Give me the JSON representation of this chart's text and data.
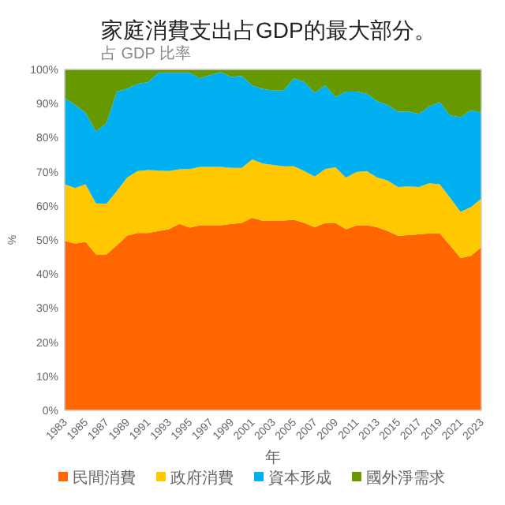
{
  "chart_data": {
    "type": "area",
    "stacked": true,
    "title": "家庭消費支出占GDP的最大部分。",
    "subtitle": "占 GDP 比率",
    "xlabel": "年",
    "ylabel": "%",
    "categories": [
      "1983",
      null,
      "1985",
      null,
      "1987",
      null,
      "1989",
      null,
      "1991",
      null,
      "1993",
      null,
      "1995",
      null,
      "1997",
      null,
      "1999",
      null,
      "2001",
      null,
      "2003",
      null,
      "2005",
      null,
      "2007",
      null,
      "2009",
      null,
      "2011",
      null,
      "2013",
      null,
      "2015",
      null,
      "2017",
      null,
      "2019",
      null,
      "2021",
      null,
      "2023"
    ],
    "series": [
      {
        "name": "民間消費",
        "color": "#ff6600",
        "values": [
          49.7,
          48.9,
          49.4,
          45.7,
          45.7,
          48.4,
          51.2,
          52.0,
          52.0,
          52.6,
          53.1,
          54.7,
          53.6,
          54.3,
          54.3,
          54.3,
          54.7,
          55.0,
          56.5,
          55.6,
          55.7,
          55.7,
          55.9,
          55.0,
          53.7,
          55.0,
          55.0,
          53.1,
          54.2,
          54.3,
          53.7,
          52.6,
          51.2,
          51.4,
          51.6,
          51.9,
          51.9,
          48.4,
          44.7,
          45.3,
          47.8
        ]
      },
      {
        "name": "政府消費",
        "color": "#ffc800",
        "values": [
          16.6,
          16.3,
          16.9,
          15.0,
          14.9,
          15.9,
          17.1,
          18.2,
          18.5,
          17.7,
          17.1,
          16.0,
          17.2,
          17.1,
          17.1,
          17.1,
          16.4,
          16.1,
          17.1,
          16.8,
          16.3,
          15.9,
          15.7,
          15.2,
          14.9,
          15.8,
          16.3,
          15.2,
          15.7,
          15.9,
          14.6,
          14.8,
          14.3,
          14.3,
          13.9,
          14.7,
          14.4,
          14.0,
          13.5,
          14.3,
          14.3
        ]
      },
      {
        "name": "資本形成",
        "color": "#00b0f0",
        "values": [
          25.3,
          24.4,
          21.0,
          21.1,
          23.6,
          29.2,
          26.0,
          25.6,
          25.8,
          28.7,
          28.8,
          28.3,
          28.2,
          26.0,
          27.0,
          27.8,
          26.7,
          27.0,
          21.7,
          21.9,
          21.8,
          22.2,
          25.8,
          26.1,
          24.6,
          24.5,
          20.6,
          25.2,
          23.6,
          22.7,
          22.4,
          22.2,
          22.1,
          22.0,
          21.5,
          22.5,
          24.1,
          24.1,
          27.8,
          28.4,
          25.2
        ]
      },
      {
        "name": "國外淨需求",
        "color": "#669900",
        "values": [
          8.4,
          10.4,
          12.7,
          18.2,
          15.8,
          6.5,
          5.7,
          4.2,
          3.7,
          1.0,
          1.0,
          1.0,
          1.0,
          2.6,
          1.6,
          0.8,
          2.2,
          1.9,
          4.7,
          5.7,
          6.2,
          6.2,
          2.6,
          3.7,
          6.8,
          4.7,
          8.1,
          6.5,
          6.5,
          7.1,
          9.3,
          10.4,
          12.4,
          12.3,
          13.0,
          10.9,
          9.6,
          13.5,
          14.0,
          12.0,
          12.7
        ]
      }
    ],
    "ylim": [
      0,
      100
    ],
    "yticks": [
      {
        "value": 0,
        "label": "0%"
      },
      {
        "value": 10,
        "label": "10%"
      },
      {
        "value": 20,
        "label": "20%"
      },
      {
        "value": 30,
        "label": "30%"
      },
      {
        "value": 40,
        "label": "40%"
      },
      {
        "value": 50,
        "label": "50%"
      },
      {
        "value": 60,
        "label": "60%"
      },
      {
        "value": 70,
        "label": "70%"
      },
      {
        "value": 80,
        "label": "80%"
      },
      {
        "value": 90,
        "label": "90%"
      },
      {
        "value": 100,
        "label": "100%"
      }
    ],
    "legend": "bottom"
  }
}
